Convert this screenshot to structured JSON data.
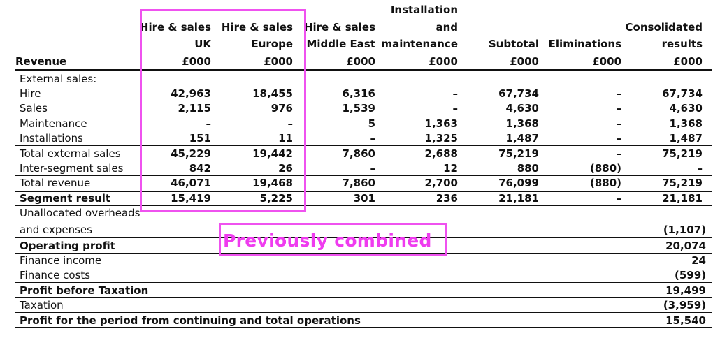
{
  "columns": [
    {
      "id": "uk",
      "lines": [
        "Hire & sales",
        "UK",
        "£000"
      ]
    },
    {
      "id": "eu",
      "lines": [
        "Hire & sales",
        "Europe",
        "£000"
      ]
    },
    {
      "id": "me",
      "lines": [
        "Hire & sales",
        "Middle East",
        "£000"
      ]
    },
    {
      "id": "im",
      "lines": [
        "Installation",
        "and",
        "maintenance",
        "£000"
      ]
    },
    {
      "id": "sub",
      "lines": [
        "Subtotal",
        "£000"
      ]
    },
    {
      "id": "elim",
      "lines": [
        "Eliminations",
        "£000"
      ]
    },
    {
      "id": "cons",
      "lines": [
        "Consolidated",
        "results",
        "£000"
      ]
    }
  ],
  "revenue_label": "Revenue",
  "rows": [
    {
      "label": "External sales:",
      "bold": false,
      "values": [
        "",
        "",
        "",
        "",
        "",
        "",
        ""
      ]
    },
    {
      "label": "Hire",
      "bold": false,
      "values": [
        "42,963",
        "18,455",
        "6,316",
        "–",
        "67,734",
        "–",
        "67,734"
      ]
    },
    {
      "label": "Sales",
      "bold": false,
      "values": [
        "2,115",
        "976",
        "1,539",
        "–",
        "4,630",
        "–",
        "4,630"
      ]
    },
    {
      "label": "Maintenance",
      "bold": false,
      "values": [
        "–",
        "–",
        "5",
        "1,363",
        "1,368",
        "–",
        "1,368"
      ]
    },
    {
      "label": "Installations",
      "bold": false,
      "values": [
        "151",
        "11",
        "–",
        "1,325",
        "1,487",
        "–",
        "1,487"
      ]
    },
    {
      "label": "Total external sales",
      "bold": false,
      "values": [
        "45,229",
        "19,442",
        "7,860",
        "2,688",
        "75,219",
        "–",
        "75,219"
      ]
    },
    {
      "label": "Inter-segment sales",
      "bold": false,
      "values": [
        "842",
        "26",
        "–",
        "12",
        "880",
        "(880)",
        "–"
      ]
    },
    {
      "label": "Total revenue",
      "bold": false,
      "values": [
        "46,071",
        "19,468",
        "7,860",
        "2,700",
        "76,099",
        "(880)",
        "75,219"
      ]
    },
    {
      "label": "Segment result",
      "bold": true,
      "values": [
        "15,419",
        "5,225",
        "301",
        "236",
        "21,181",
        "–",
        "21,181"
      ]
    }
  ],
  "lower_rows": [
    {
      "label": "Unallocated overheads",
      "bold": false,
      "value": ""
    },
    {
      "label": "and expenses",
      "bold": false,
      "value": "(1,107)"
    },
    {
      "label": "Operating profit",
      "bold": true,
      "value": "20,074"
    },
    {
      "label": "Finance income",
      "bold": false,
      "value": "24"
    },
    {
      "label": "Finance costs",
      "bold": false,
      "value": "(599)"
    },
    {
      "label": "Profit before Taxation",
      "bold": true,
      "value": "19,499"
    },
    {
      "label": "Taxation",
      "bold": false,
      "value": "(3,959)"
    },
    {
      "label": "Profit for the period from continuing and total operations",
      "bold": true,
      "value": "15,540"
    }
  ],
  "annotation": {
    "text": "Previously combined",
    "color": "#ef3cef"
  }
}
